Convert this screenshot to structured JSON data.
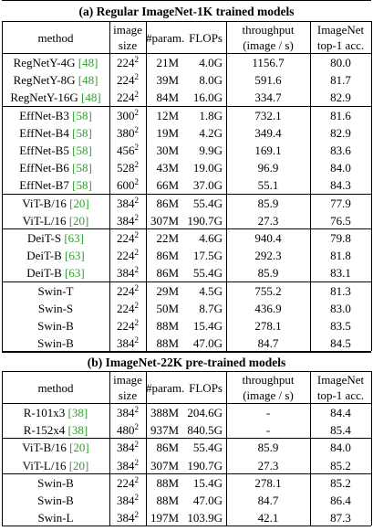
{
  "sections": [
    {
      "title": "(a) Regular ImageNet-1K trained models",
      "header": {
        "method": "method",
        "image_1": "image",
        "image_2": "size",
        "param": "#param.",
        "flops": "FLOPs",
        "throughput_1": "throughput",
        "throughput_2": "(image / s)",
        "acc_1": "ImageNet",
        "acc_2": "top-1 acc."
      },
      "groups": [
        [
          {
            "method": "RegNetY-4G ",
            "cite": "[48]",
            "res": "224",
            "exp": "2",
            "params": "21M",
            "flops": "4.0G",
            "throughput": "1156.7",
            "acc": "80.0"
          },
          {
            "method": "RegNetY-8G ",
            "cite": "[48]",
            "res": "224",
            "exp": "2",
            "params": "39M",
            "flops": "8.0G",
            "throughput": "591.6",
            "acc": "81.7"
          },
          {
            "method": "RegNetY-16G ",
            "cite": "[48]",
            "res": "224",
            "exp": "2",
            "params": "84M",
            "flops": "16.0G",
            "throughput": "334.7",
            "acc": "82.9"
          }
        ],
        [
          {
            "method": "EffNet-B3 ",
            "cite": "[58]",
            "res": "300",
            "exp": "2",
            "params": "12M",
            "flops": "1.8G",
            "throughput": "732.1",
            "acc": "81.6"
          },
          {
            "method": "EffNet-B4 ",
            "cite": "[58]",
            "res": "380",
            "exp": "2",
            "params": "19M",
            "flops": "4.2G",
            "throughput": "349.4",
            "acc": "82.9"
          },
          {
            "method": "EffNet-B5 ",
            "cite": "[58]",
            "res": "456",
            "exp": "2",
            "params": "30M",
            "flops": "9.9G",
            "throughput": "169.1",
            "acc": "83.6"
          },
          {
            "method": "EffNet-B6 ",
            "cite": "[58]",
            "res": "528",
            "exp": "2",
            "params": "43M",
            "flops": "19.0G",
            "throughput": "96.9",
            "acc": "84.0"
          },
          {
            "method": "EffNet-B7 ",
            "cite": "[58]",
            "res": "600",
            "exp": "2",
            "params": "66M",
            "flops": "37.0G",
            "throughput": "55.1",
            "acc": "84.3"
          }
        ],
        [
          {
            "method": "ViT-B/16 ",
            "cite": "[20]",
            "res": "384",
            "exp": "2",
            "params": "86M",
            "flops": "55.4G",
            "throughput": "85.9",
            "acc": "77.9"
          },
          {
            "method": "ViT-L/16 ",
            "cite": "[20]",
            "res": "384",
            "exp": "2",
            "params": "307M",
            "flops": "190.7G",
            "throughput": "27.3",
            "acc": "76.5"
          }
        ],
        [
          {
            "method": "DeiT-S ",
            "cite": "[63]",
            "res": "224",
            "exp": "2",
            "params": "22M",
            "flops": "4.6G",
            "throughput": "940.4",
            "acc": "79.8"
          },
          {
            "method": "DeiT-B ",
            "cite": "[63]",
            "res": "224",
            "exp": "2",
            "params": "86M",
            "flops": "17.5G",
            "throughput": "292.3",
            "acc": "81.8"
          },
          {
            "method": "DeiT-B ",
            "cite": "[63]",
            "res": "384",
            "exp": "2",
            "params": "86M",
            "flops": "55.4G",
            "throughput": "85.9",
            "acc": "83.1"
          }
        ],
        [
          {
            "method": "Swin-T",
            "cite": "",
            "res": "224",
            "exp": "2",
            "params": "29M",
            "flops": "4.5G",
            "throughput": "755.2",
            "acc": "81.3"
          },
          {
            "method": "Swin-S",
            "cite": "",
            "res": "224",
            "exp": "2",
            "params": "50M",
            "flops": "8.7G",
            "throughput": "436.9",
            "acc": "83.0"
          },
          {
            "method": "Swin-B",
            "cite": "",
            "res": "224",
            "exp": "2",
            "params": "88M",
            "flops": "15.4G",
            "throughput": "278.1",
            "acc": "83.5"
          },
          {
            "method": "Swin-B",
            "cite": "",
            "res": "384",
            "exp": "2",
            "params": "88M",
            "flops": "47.0G",
            "throughput": "84.7",
            "acc": "84.5"
          }
        ]
      ]
    },
    {
      "title": "(b) ImageNet-22K pre-trained models",
      "header": {
        "method": "method",
        "image_1": "image",
        "image_2": "size",
        "param": "#param.",
        "flops": "FLOPs",
        "throughput_1": "throughput",
        "throughput_2": "(image / s)",
        "acc_1": "ImageNet",
        "acc_2": "top-1 acc."
      },
      "groups": [
        [
          {
            "method": "R-101x3 ",
            "cite": "[38]",
            "res": "384",
            "exp": "2",
            "params": "388M",
            "flops": "204.6G",
            "throughput": "-",
            "acc": "84.4"
          },
          {
            "method": "R-152x4 ",
            "cite": "[38]",
            "res": "480",
            "exp": "2",
            "params": "937M",
            "flops": "840.5G",
            "throughput": "-",
            "acc": "85.4"
          }
        ],
        [
          {
            "method": "ViT-B/16 ",
            "cite": "[20]",
            "res": "384",
            "exp": "2",
            "params": "86M",
            "flops": "55.4G",
            "throughput": "85.9",
            "acc": "84.0"
          },
          {
            "method": "ViT-L/16 ",
            "cite": "[20]",
            "res": "384",
            "exp": "2",
            "params": "307M",
            "flops": "190.7G",
            "throughput": "27.3",
            "acc": "85.2"
          }
        ],
        [
          {
            "method": "Swin-B",
            "cite": "",
            "res": "224",
            "exp": "2",
            "params": "88M",
            "flops": "15.4G",
            "throughput": "278.1",
            "acc": "85.2"
          },
          {
            "method": "Swin-B",
            "cite": "",
            "res": "384",
            "exp": "2",
            "params": "88M",
            "flops": "47.0G",
            "throughput": "84.7",
            "acc": "86.4"
          },
          {
            "method": "Swin-L",
            "cite": "",
            "res": "384",
            "exp": "2",
            "params": "197M",
            "flops": "103.9G",
            "throughput": "42.1",
            "acc": "87.3"
          }
        ]
      ]
    }
  ],
  "colors": {
    "citation": "#2ca02c",
    "rule": "#000000"
  }
}
